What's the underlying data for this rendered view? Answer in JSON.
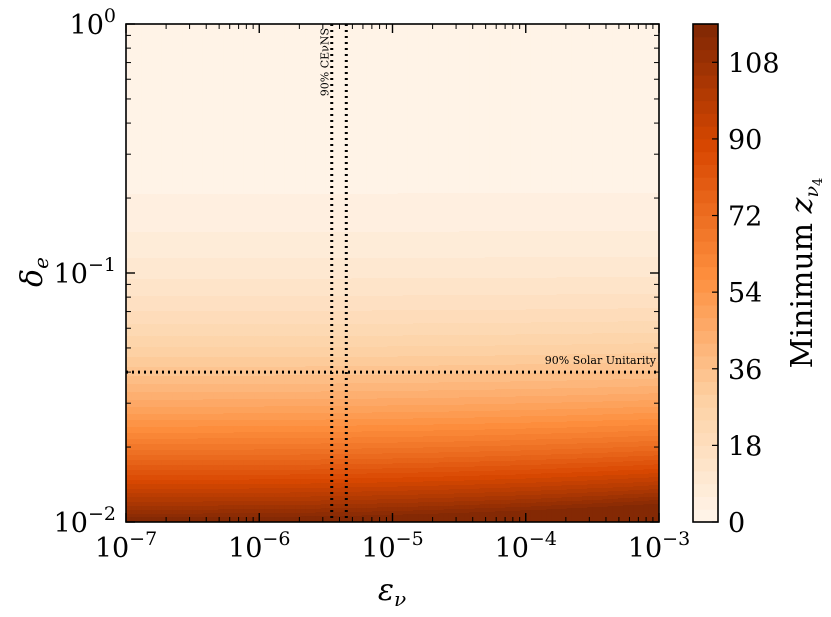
{
  "chart_data": {
    "type": "heatmap",
    "title": "",
    "x_axis": {
      "scale": "log",
      "range": [
        1e-07,
        0.001
      ],
      "ticks": [
        {
          "base": "10",
          "exp": "−7"
        },
        {
          "base": "10",
          "exp": "−6"
        },
        {
          "base": "10",
          "exp": "−5"
        },
        {
          "base": "10",
          "exp": "−4"
        },
        {
          "base": "10",
          "exp": "−3"
        }
      ],
      "label_main": "ε",
      "label_sub": "ν"
    },
    "y_axis": {
      "scale": "log",
      "range": [
        0.01,
        1
      ],
      "ticks": [
        {
          "base": "10",
          "exp": "−2"
        },
        {
          "base": "10",
          "exp": "−1"
        },
        {
          "base": "10",
          "exp": "0"
        }
      ],
      "label_main": "δ",
      "label_sub": "e"
    },
    "colorbar": {
      "label_prefix": "Minimum ",
      "label_main": "z",
      "label_sub": "ν",
      "label_subsub": "4",
      "range": [
        0,
        117
      ],
      "ticks": [
        "0",
        "18",
        "36",
        "54",
        "72",
        "90",
        "108"
      ],
      "levels": 39,
      "colormap_stops": [
        "#fff5eb",
        "#fdd0a2",
        "#fd8d3c",
        "#d94801",
        "#7f2704"
      ]
    },
    "constraints": [
      {
        "orientation": "vertical",
        "x": 3.5e-06,
        "label": "90% CEνNS"
      },
      {
        "orientation": "vertical",
        "x": 4.5e-06,
        "label": ""
      },
      {
        "orientation": "horizontal",
        "y": 0.04,
        "label": "90% Solar Unitarity"
      }
    ],
    "grid": false
  }
}
